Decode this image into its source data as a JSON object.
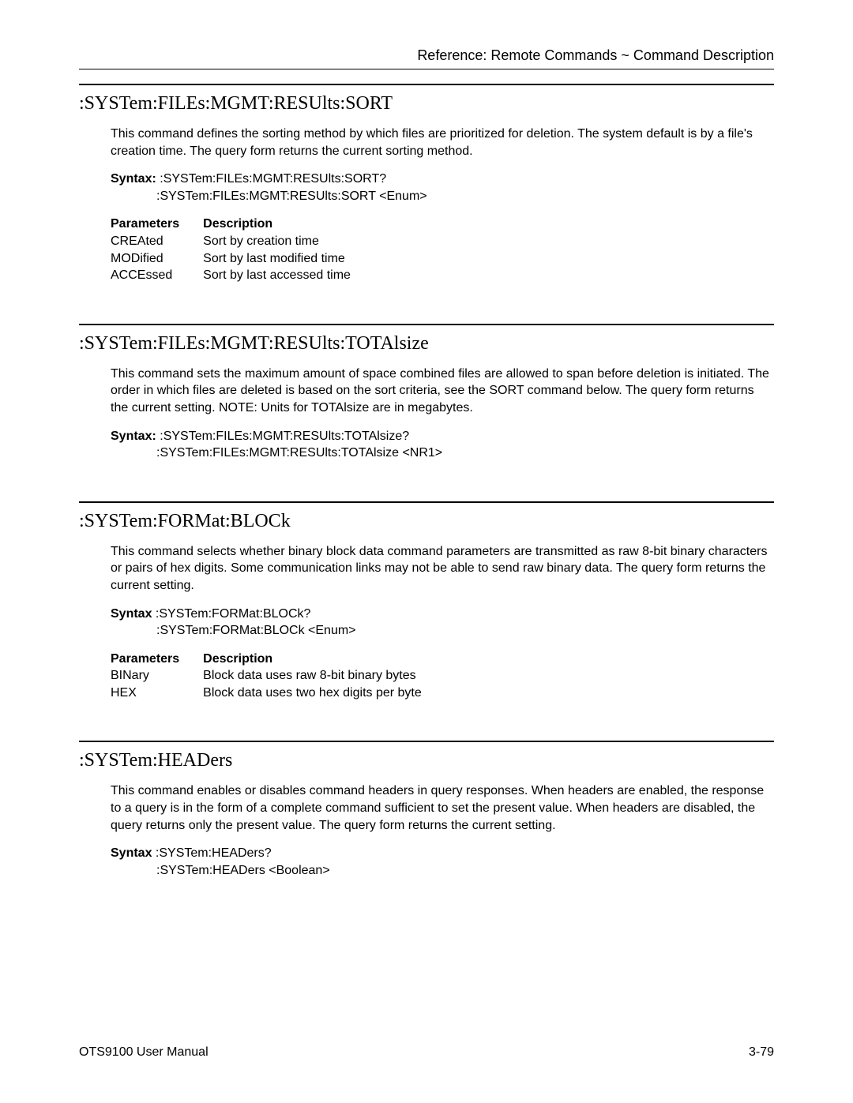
{
  "header": {
    "text": "Reference: Remote Commands ~ Command Description"
  },
  "sections": [
    {
      "title": ":SYSTem:FILEs:MGMT:RESUlts:SORT",
      "description": "This command defines the sorting method by which files are prioritized for deletion. The system default is by a file's creation time. The query form returns the current sorting method.",
      "syntax_label": "Syntax:",
      "syntax_line1": " :SYSTem:FILEs:MGMT:RESUlts:SORT?",
      "syntax_line2": ":SYSTem:FILEs:MGMT:RESUlts:SORT <Enum>",
      "params_header": {
        "col1": "Parameters",
        "col2": "Description"
      },
      "params": [
        {
          "col1": "CREAted",
          "col2": "Sort by creation time"
        },
        {
          "col1": "MODified",
          "col2": "Sort by last modified time"
        },
        {
          "col1": "ACCEssed",
          "col2": "Sort by last accessed time"
        }
      ]
    },
    {
      "title": ":SYSTem:FILEs:MGMT:RESUlts:TOTAlsize",
      "description": "This command sets the maximum amount of space combined files are allowed to span before deletion is initiated. The order in which files are deleted is based on the sort criteria, see the SORT command below. The query form returns the current setting. NOTE: Units for TOTAlsize are in megabytes.",
      "syntax_label": "Syntax:",
      "syntax_line1": " :SYSTem:FILEs:MGMT:RESUlts:TOTAlsize?",
      "syntax_line2": ":SYSTem:FILEs:MGMT:RESUlts:TOTAlsize <NR1>",
      "params_header": null,
      "params": []
    },
    {
      "title": ":SYSTem:FORMat:BLOCk",
      "description": "This command selects whether binary block data command parameters are transmitted as raw 8-bit binary characters or pairs of hex digits. Some communication links may not be able to send raw binary data. The query form returns the current setting.",
      "syntax_label": "Syntax",
      "syntax_line1": " :SYSTem:FORMat:BLOCk?",
      "syntax_line2": ":SYSTem:FORMat:BLOCk <Enum>",
      "params_header": {
        "col1": "Parameters",
        "col2": "Description"
      },
      "params": [
        {
          "col1": "BINary",
          "col2": "Block data uses raw 8-bit binary bytes"
        },
        {
          "col1": "HEX",
          "col2": "Block data uses two hex digits per byte"
        }
      ]
    },
    {
      "title": ":SYSTem:HEADers",
      "description": "This command enables or disables command headers in query responses. When headers are enabled, the response to a query is in the form of a complete command sufficient to set the present value. When headers are disabled, the query returns only the present value. The query form returns the current setting.",
      "syntax_label": "Syntax",
      "syntax_line1": " :SYSTem:HEADers?",
      "syntax_line2": ":SYSTem:HEADers <Boolean>",
      "params_header": null,
      "params": []
    }
  ],
  "footer": {
    "left": "OTS9100 User Manual",
    "right": "3-79"
  }
}
